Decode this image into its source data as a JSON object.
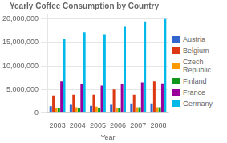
{
  "chart_data": {
    "type": "bar",
    "title": "Yearly Coffee Consumption by Country",
    "xlabel": "Year",
    "categories": [
      "2003",
      "2004",
      "2005",
      "2006",
      "2007",
      "2008"
    ],
    "series": [
      {
        "name": "Austria",
        "color": "#3366cc",
        "values": [
          1400000,
          1700000,
          1500000,
          1700000,
          2000000,
          2000000
        ]
      },
      {
        "name": "Belgium",
        "color": "#dc3912",
        "values": [
          3700000,
          3900000,
          3900000,
          5000000,
          3900000,
          6700000
        ]
      },
      {
        "name": "Czech\nRepublic",
        "color": "#ff9900",
        "values": [
          1100000,
          1200000,
          1300000,
          1100000,
          1200000,
          1200000
        ]
      },
      {
        "name": "Finland",
        "color": "#109618",
        "values": [
          1000000,
          1100000,
          1100000,
          1100000,
          1200000,
          1200000
        ]
      },
      {
        "name": "France",
        "color": "#990099",
        "values": [
          6700000,
          6100000,
          5800000,
          6200000,
          6500000,
          6300000
        ]
      },
      {
        "name": "Germany",
        "color": "#00b9e8",
        "values": [
          15800000,
          17200000,
          16800000,
          18500000,
          19500000,
          20000000
        ]
      }
    ],
    "ylim": [
      0,
      21000000
    ],
    "yticks": [
      0,
      {
        "value": 5000000,
        "label": "5,000,000"
      },
      {
        "value": 10000000,
        "label": "10,000,000"
      },
      {
        "value": 15000000,
        "label": "15,000,000"
      },
      {
        "value": 20000000,
        "label": "20,000,000"
      }
    ],
    "grid": true,
    "legend": "right"
  }
}
